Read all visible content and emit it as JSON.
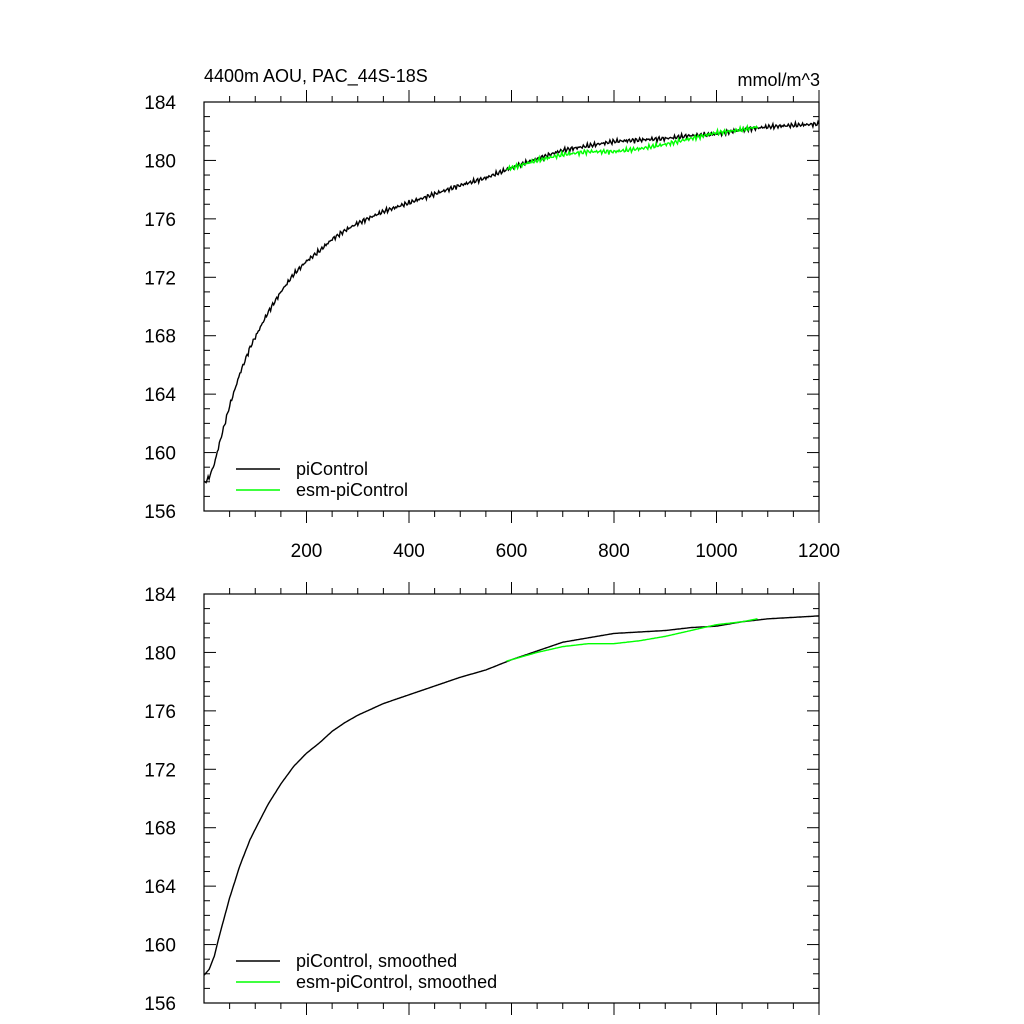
{
  "chart_data": [
    {
      "type": "line",
      "title": "4400m AOU, PAC_44S-18S",
      "units": "mmol/m^3",
      "xlim": [
        0,
        1200
      ],
      "ylim": [
        156,
        184
      ],
      "x_ticks": [
        200,
        400,
        600,
        800,
        1000,
        1200
      ],
      "x_tick_labels": [
        "200",
        "400",
        "600",
        "800",
        "1000",
        "1200"
      ],
      "y_ticks": [
        156,
        160,
        164,
        168,
        172,
        176,
        180,
        184
      ],
      "y_tick_labels": [
        "156",
        "160",
        "164",
        "168",
        "172",
        "176",
        "180",
        "184"
      ],
      "grid": false,
      "legend_position": "bottom-left",
      "series": [
        {
          "name": "piControl",
          "color": "#000000",
          "x": [
            0,
            10,
            20,
            30,
            40,
            50,
            60,
            70,
            80,
            90,
            100,
            125,
            150,
            175,
            200,
            225,
            250,
            275,
            300,
            350,
            400,
            450,
            500,
            550,
            600,
            650,
            700,
            750,
            800,
            850,
            900,
            950,
            1000,
            1050,
            1100,
            1150,
            1200
          ],
          "values": [
            157.9,
            158.3,
            159.2,
            160.6,
            161.9,
            163.2,
            164.3,
            165.4,
            166.3,
            167.2,
            167.9,
            169.6,
            171.0,
            172.2,
            173.1,
            173.8,
            174.6,
            175.2,
            175.7,
            176.5,
            177.1,
            177.7,
            178.3,
            178.8,
            179.5,
            180.1,
            180.7,
            181.0,
            181.3,
            181.4,
            181.5,
            181.7,
            181.8,
            182.1,
            182.3,
            182.4,
            182.5
          ],
          "noisy": true
        },
        {
          "name": "esm-piControl",
          "color": "#00ff00",
          "x": [
            590,
            650,
            700,
            750,
            800,
            850,
            900,
            950,
            1000,
            1050,
            1080
          ],
          "values": [
            179.4,
            180.0,
            180.4,
            180.6,
            180.6,
            180.8,
            181.1,
            181.5,
            181.9,
            182.1,
            182.3
          ],
          "noisy": true
        }
      ]
    },
    {
      "type": "line",
      "xlim": [
        0,
        1200
      ],
      "ylim": [
        156,
        184
      ],
      "x_ticks": [
        200,
        400,
        600,
        800,
        1000,
        1200
      ],
      "y_ticks": [
        156,
        160,
        164,
        168,
        172,
        176,
        180,
        184
      ],
      "y_tick_labels": [
        "156",
        "160",
        "164",
        "168",
        "172",
        "176",
        "180",
        "184"
      ],
      "grid": false,
      "legend_position": "bottom-left",
      "series": [
        {
          "name": "piControl, smoothed",
          "color": "#000000",
          "x": [
            0,
            10,
            20,
            30,
            40,
            50,
            60,
            70,
            80,
            90,
            100,
            125,
            150,
            175,
            200,
            225,
            250,
            275,
            300,
            350,
            400,
            450,
            500,
            550,
            600,
            650,
            700,
            750,
            800,
            850,
            900,
            950,
            1000,
            1050,
            1100,
            1150,
            1200
          ],
          "values": [
            157.9,
            158.3,
            159.2,
            160.6,
            161.9,
            163.2,
            164.3,
            165.4,
            166.3,
            167.2,
            167.9,
            169.6,
            171.0,
            172.2,
            173.1,
            173.8,
            174.6,
            175.2,
            175.7,
            176.5,
            177.1,
            177.7,
            178.3,
            178.8,
            179.5,
            180.1,
            180.7,
            181.0,
            181.3,
            181.4,
            181.5,
            181.7,
            181.8,
            182.1,
            182.3,
            182.4,
            182.5
          ],
          "noisy": false
        },
        {
          "name": "esm-piControl, smoothed",
          "color": "#00ff00",
          "x": [
            590,
            650,
            700,
            750,
            800,
            850,
            900,
            950,
            1000,
            1050,
            1080
          ],
          "values": [
            179.4,
            180.0,
            180.4,
            180.6,
            180.6,
            180.8,
            181.1,
            181.5,
            181.9,
            182.1,
            182.3
          ],
          "noisy": false
        }
      ]
    }
  ]
}
